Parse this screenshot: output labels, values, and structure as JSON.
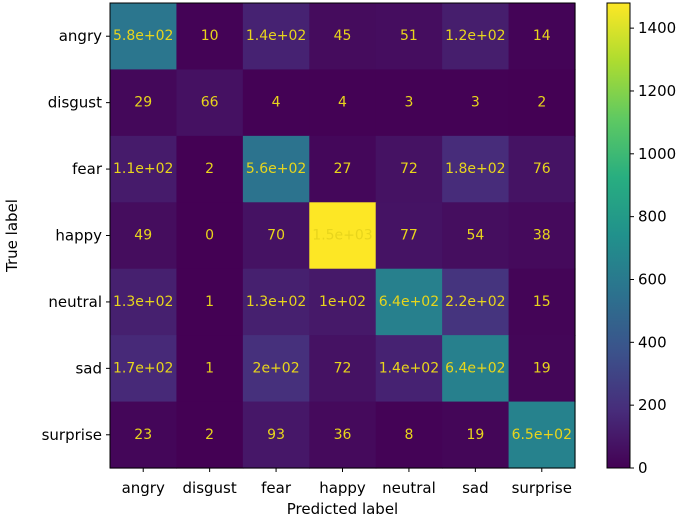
{
  "chart_data": {
    "type": "heatmap",
    "title": "",
    "xlabel": "Predicted label",
    "ylabel": "True label",
    "x_categories": [
      "angry",
      "disgust",
      "fear",
      "happy",
      "neutral",
      "sad",
      "surprise"
    ],
    "y_categories": [
      "angry",
      "disgust",
      "fear",
      "happy",
      "neutral",
      "sad",
      "surprise"
    ],
    "values": [
      [
        580,
        10,
        140,
        45,
        51,
        120,
        14
      ],
      [
        29,
        66,
        4,
        4,
        3,
        3,
        2
      ],
      [
        110,
        2,
        560,
        27,
        72,
        180,
        76
      ],
      [
        49,
        0,
        70,
        1500,
        77,
        54,
        38
      ],
      [
        130,
        1,
        130,
        100,
        640,
        220,
        15
      ],
      [
        170,
        1,
        200,
        72,
        140,
        640,
        19
      ],
      [
        23,
        2,
        93,
        36,
        8,
        19,
        650
      ]
    ],
    "cell_labels": [
      [
        "5.8e+02",
        "10",
        "1.4e+02",
        "45",
        "51",
        "1.2e+02",
        "14"
      ],
      [
        "29",
        "66",
        "4",
        "4",
        "3",
        "3",
        "2"
      ],
      [
        "1.1e+02",
        "2",
        "5.6e+02",
        "27",
        "72",
        "1.8e+02",
        "76"
      ],
      [
        "49",
        "0",
        "70",
        "1.5e+03",
        "77",
        "54",
        "38"
      ],
      [
        "1.3e+02",
        "1",
        "1.3e+02",
        "1e+02",
        "6.4e+02",
        "2.2e+02",
        "15"
      ],
      [
        "1.7e+02",
        "1",
        "2e+02",
        "72",
        "1.4e+02",
        "6.4e+02",
        "19"
      ],
      [
        "23",
        "2",
        "93",
        "36",
        "8",
        "19",
        "6.5e+02"
      ]
    ],
    "colormap": "viridis",
    "colorbar": {
      "range": [
        0,
        1480
      ],
      "ticks": [
        0,
        200,
        400,
        600,
        800,
        1000,
        1200,
        1400
      ]
    },
    "text_color": "#e8d51c",
    "grid": false
  }
}
